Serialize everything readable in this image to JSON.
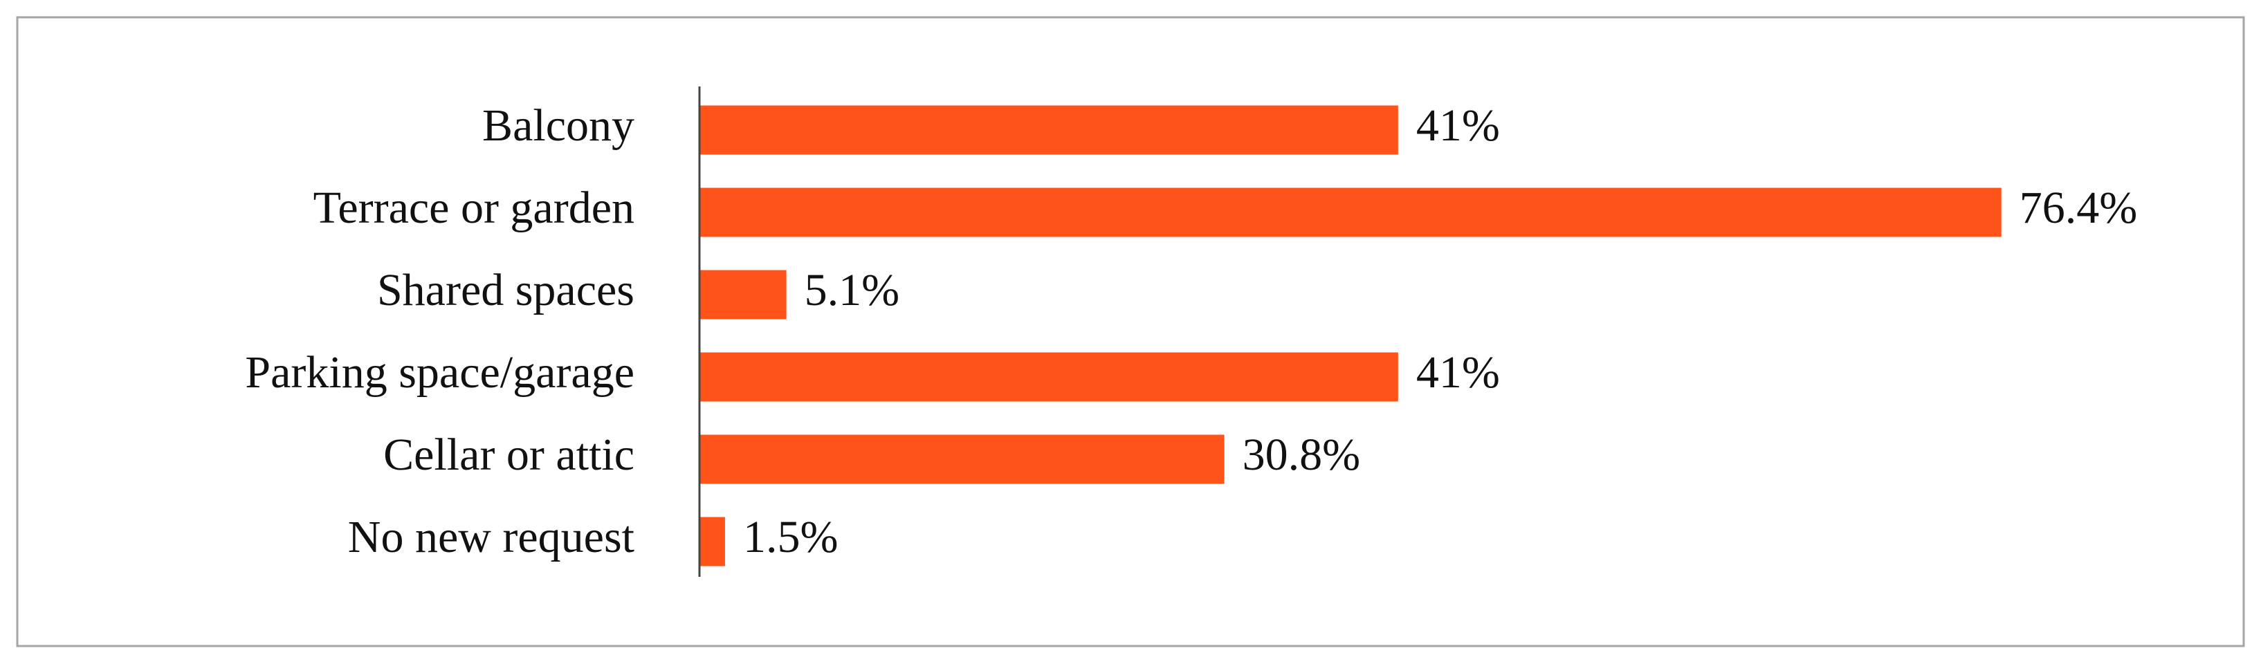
{
  "chart_data": {
    "type": "bar",
    "orientation": "horizontal",
    "categories": [
      "Balcony",
      "Terrace or garden",
      "Shared spaces",
      "Parking space/garage",
      "Cellar or attic",
      "No new request"
    ],
    "values": [
      41,
      76.4,
      5.1,
      41,
      30.8,
      1.5
    ],
    "value_labels": [
      "41%",
      "76.4%",
      "5.1%",
      "41%",
      "30.8%",
      "1.5%"
    ],
    "color": "#ff5419"
  }
}
